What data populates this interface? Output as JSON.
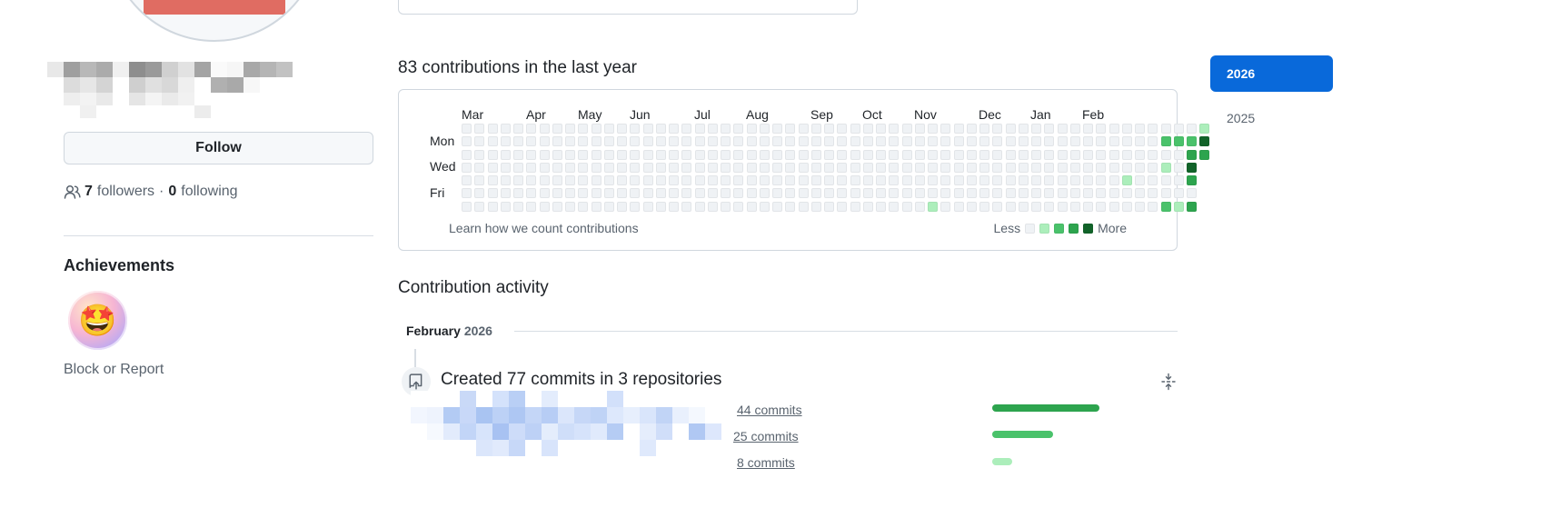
{
  "profile": {
    "follow_label": "Follow",
    "followers_count": "7",
    "followers_label": "followers",
    "separator": "·",
    "following_count": "0",
    "following_label": "following",
    "achievements_title": "Achievements",
    "achievement_badge_emoji": "🤩",
    "block_report_label": "Block or Report"
  },
  "contributions": {
    "title": "83 contributions in the last year",
    "months": [
      "Mar",
      "Apr",
      "May",
      "Jun",
      "Jul",
      "Aug",
      "Sep",
      "Oct",
      "Nov",
      "Dec",
      "Jan",
      "Feb"
    ],
    "days": [
      "Mon",
      "Wed",
      "Fri"
    ],
    "learn_link": "Learn how we count contributions",
    "legend_less": "Less",
    "legend_more": "More",
    "level_colors": [
      "#eff2f5",
      "#aceebb",
      "#4ac26b",
      "#2da44e",
      "#116329"
    ]
  },
  "activity": {
    "title": "Contribution activity",
    "month": "February",
    "year": "2026",
    "created_summary": "Created 77 commits in 3 repositories",
    "repos": [
      {
        "commits": "44 commits",
        "ratio": 1.0,
        "color": "#2da44e"
      },
      {
        "commits": "25 commits",
        "ratio": 0.57,
        "color": "#4ac26b"
      },
      {
        "commits": "8 commits",
        "ratio": 0.19,
        "color": "#aceebb"
      }
    ]
  },
  "years": {
    "active": "2026",
    "other": "2025"
  }
}
